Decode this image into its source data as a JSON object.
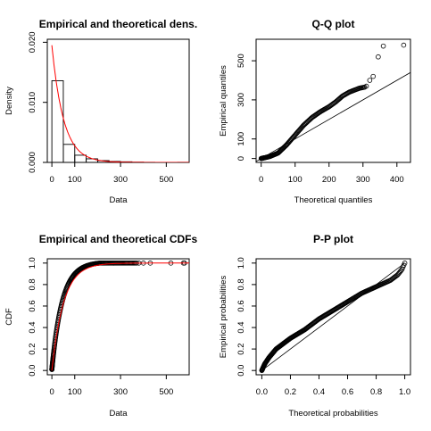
{
  "chart_data": [
    {
      "type": "bar",
      "title": "Empirical and theoretical dens.",
      "xlabel": "Data",
      "ylabel": "Density",
      "xlim": [
        -20,
        600
      ],
      "ylim": [
        0,
        0.0205
      ],
      "xticks": [
        0,
        100,
        300,
        500
      ],
      "yticks": [
        0,
        0.01,
        0.02
      ],
      "xtick_labels": [
        "0",
        "100",
        "300",
        "500"
      ],
      "ytick_labels": [
        "0.000",
        "0.010",
        "0.020"
      ],
      "bins": [
        {
          "x0": 0,
          "x1": 50,
          "density": 0.0136
        },
        {
          "x0": 50,
          "x1": 100,
          "density": 0.003
        },
        {
          "x0": 100,
          "x1": 150,
          "density": 0.0012
        },
        {
          "x0": 150,
          "x1": 200,
          "density": 0.0006
        },
        {
          "x0": 200,
          "x1": 250,
          "density": 0.0003
        },
        {
          "x0": 250,
          "x1": 300,
          "density": 0.00016
        },
        {
          "x0": 300,
          "x1": 350,
          "density": 0.0001
        },
        {
          "x0": 350,
          "x1": 400,
          "density": 4e-05
        },
        {
          "x0": 400,
          "x1": 450,
          "density": 2e-05
        },
        {
          "x0": 450,
          "x1": 500,
          "density": 0.0
        },
        {
          "x0": 500,
          "x1": 550,
          "density": 1e-05
        },
        {
          "x0": 550,
          "x1": 600,
          "density": 2e-05
        }
      ],
      "fitted_density": {
        "color": "#ff0000",
        "rate": 0.0195
      }
    },
    {
      "type": "scatter",
      "title": "Q-Q plot",
      "xlabel": "Theoretical quantiles",
      "ylabel": "Empirical quantiles",
      "xlim": [
        -15,
        440
      ],
      "ylim": [
        -20,
        610
      ],
      "xticks": [
        0,
        100,
        200,
        300,
        400
      ],
      "yticks": [
        0,
        100,
        300,
        500
      ],
      "xtick_labels": [
        "0",
        "100",
        "200",
        "300",
        "400"
      ],
      "ytick_labels": [
        "0",
        "100",
        "300",
        "500"
      ],
      "reference_line": {
        "slope": 1,
        "intercept": 0
      },
      "curve_knots": [
        [
          0,
          0
        ],
        [
          25,
          10
        ],
        [
          50,
          28
        ],
        [
          75,
          70
        ],
        [
          100,
          120
        ],
        [
          125,
          170
        ],
        [
          150,
          210
        ],
        [
          175,
          240
        ],
        [
          200,
          265
        ],
        [
          220,
          290
        ],
        [
          240,
          320
        ],
        [
          260,
          340
        ],
        [
          275,
          350
        ],
        [
          290,
          360
        ],
        [
          305,
          365
        ]
      ],
      "outliers": [
        [
          310,
          370
        ],
        [
          320,
          400
        ],
        [
          330,
          420
        ],
        [
          345,
          520
        ],
        [
          360,
          575
        ],
        [
          420,
          580
        ]
      ]
    },
    {
      "type": "scatter",
      "title": "Empirical and theoretical CDFs",
      "xlabel": "Data",
      "ylabel": "CDF",
      "xlim": [
        -20,
        600
      ],
      "ylim": [
        -0.04,
        1.04
      ],
      "xticks": [
        0,
        100,
        300,
        500
      ],
      "yticks": [
        0,
        0.2,
        0.4,
        0.6,
        0.8,
        1.0
      ],
      "xtick_labels": [
        "0",
        "100",
        "300",
        "500"
      ],
      "ytick_labels": [
        "0.0",
        "0.2",
        "0.4",
        "0.6",
        "0.8",
        "1.0"
      ],
      "empirical_rate": 0.022,
      "empirical_max_x": 370,
      "fitted_cdf": {
        "color": "#ff0000",
        "rate": 0.0195
      },
      "outliers_x": [
        380,
        400,
        430,
        520,
        575,
        580
      ]
    },
    {
      "type": "scatter",
      "title": "P-P plot",
      "xlabel": "Theoretical probabilities",
      "ylabel": "Empirical probabilities",
      "xlim": [
        -0.04,
        1.04
      ],
      "ylim": [
        -0.04,
        1.04
      ],
      "xticks": [
        0,
        0.2,
        0.4,
        0.6,
        0.8,
        1.0
      ],
      "yticks": [
        0,
        0.2,
        0.4,
        0.6,
        0.8,
        1.0
      ],
      "xtick_labels": [
        "0.0",
        "0.2",
        "0.4",
        "0.6",
        "0.8",
        "1.0"
      ],
      "ytick_labels": [
        "0.0",
        "0.2",
        "0.4",
        "0.6",
        "0.8",
        "1.0"
      ],
      "reference_line": {
        "slope": 1,
        "intercept": 0
      },
      "curve_knots": [
        [
          0,
          0
        ],
        [
          0.02,
          0.06
        ],
        [
          0.05,
          0.12
        ],
        [
          0.1,
          0.2
        ],
        [
          0.2,
          0.3
        ],
        [
          0.3,
          0.38
        ],
        [
          0.4,
          0.48
        ],
        [
          0.5,
          0.56
        ],
        [
          0.6,
          0.64
        ],
        [
          0.7,
          0.72
        ],
        [
          0.8,
          0.78
        ],
        [
          0.9,
          0.84
        ],
        [
          0.95,
          0.89
        ],
        [
          0.98,
          0.94
        ],
        [
          1.0,
          1.0
        ]
      ]
    }
  ]
}
